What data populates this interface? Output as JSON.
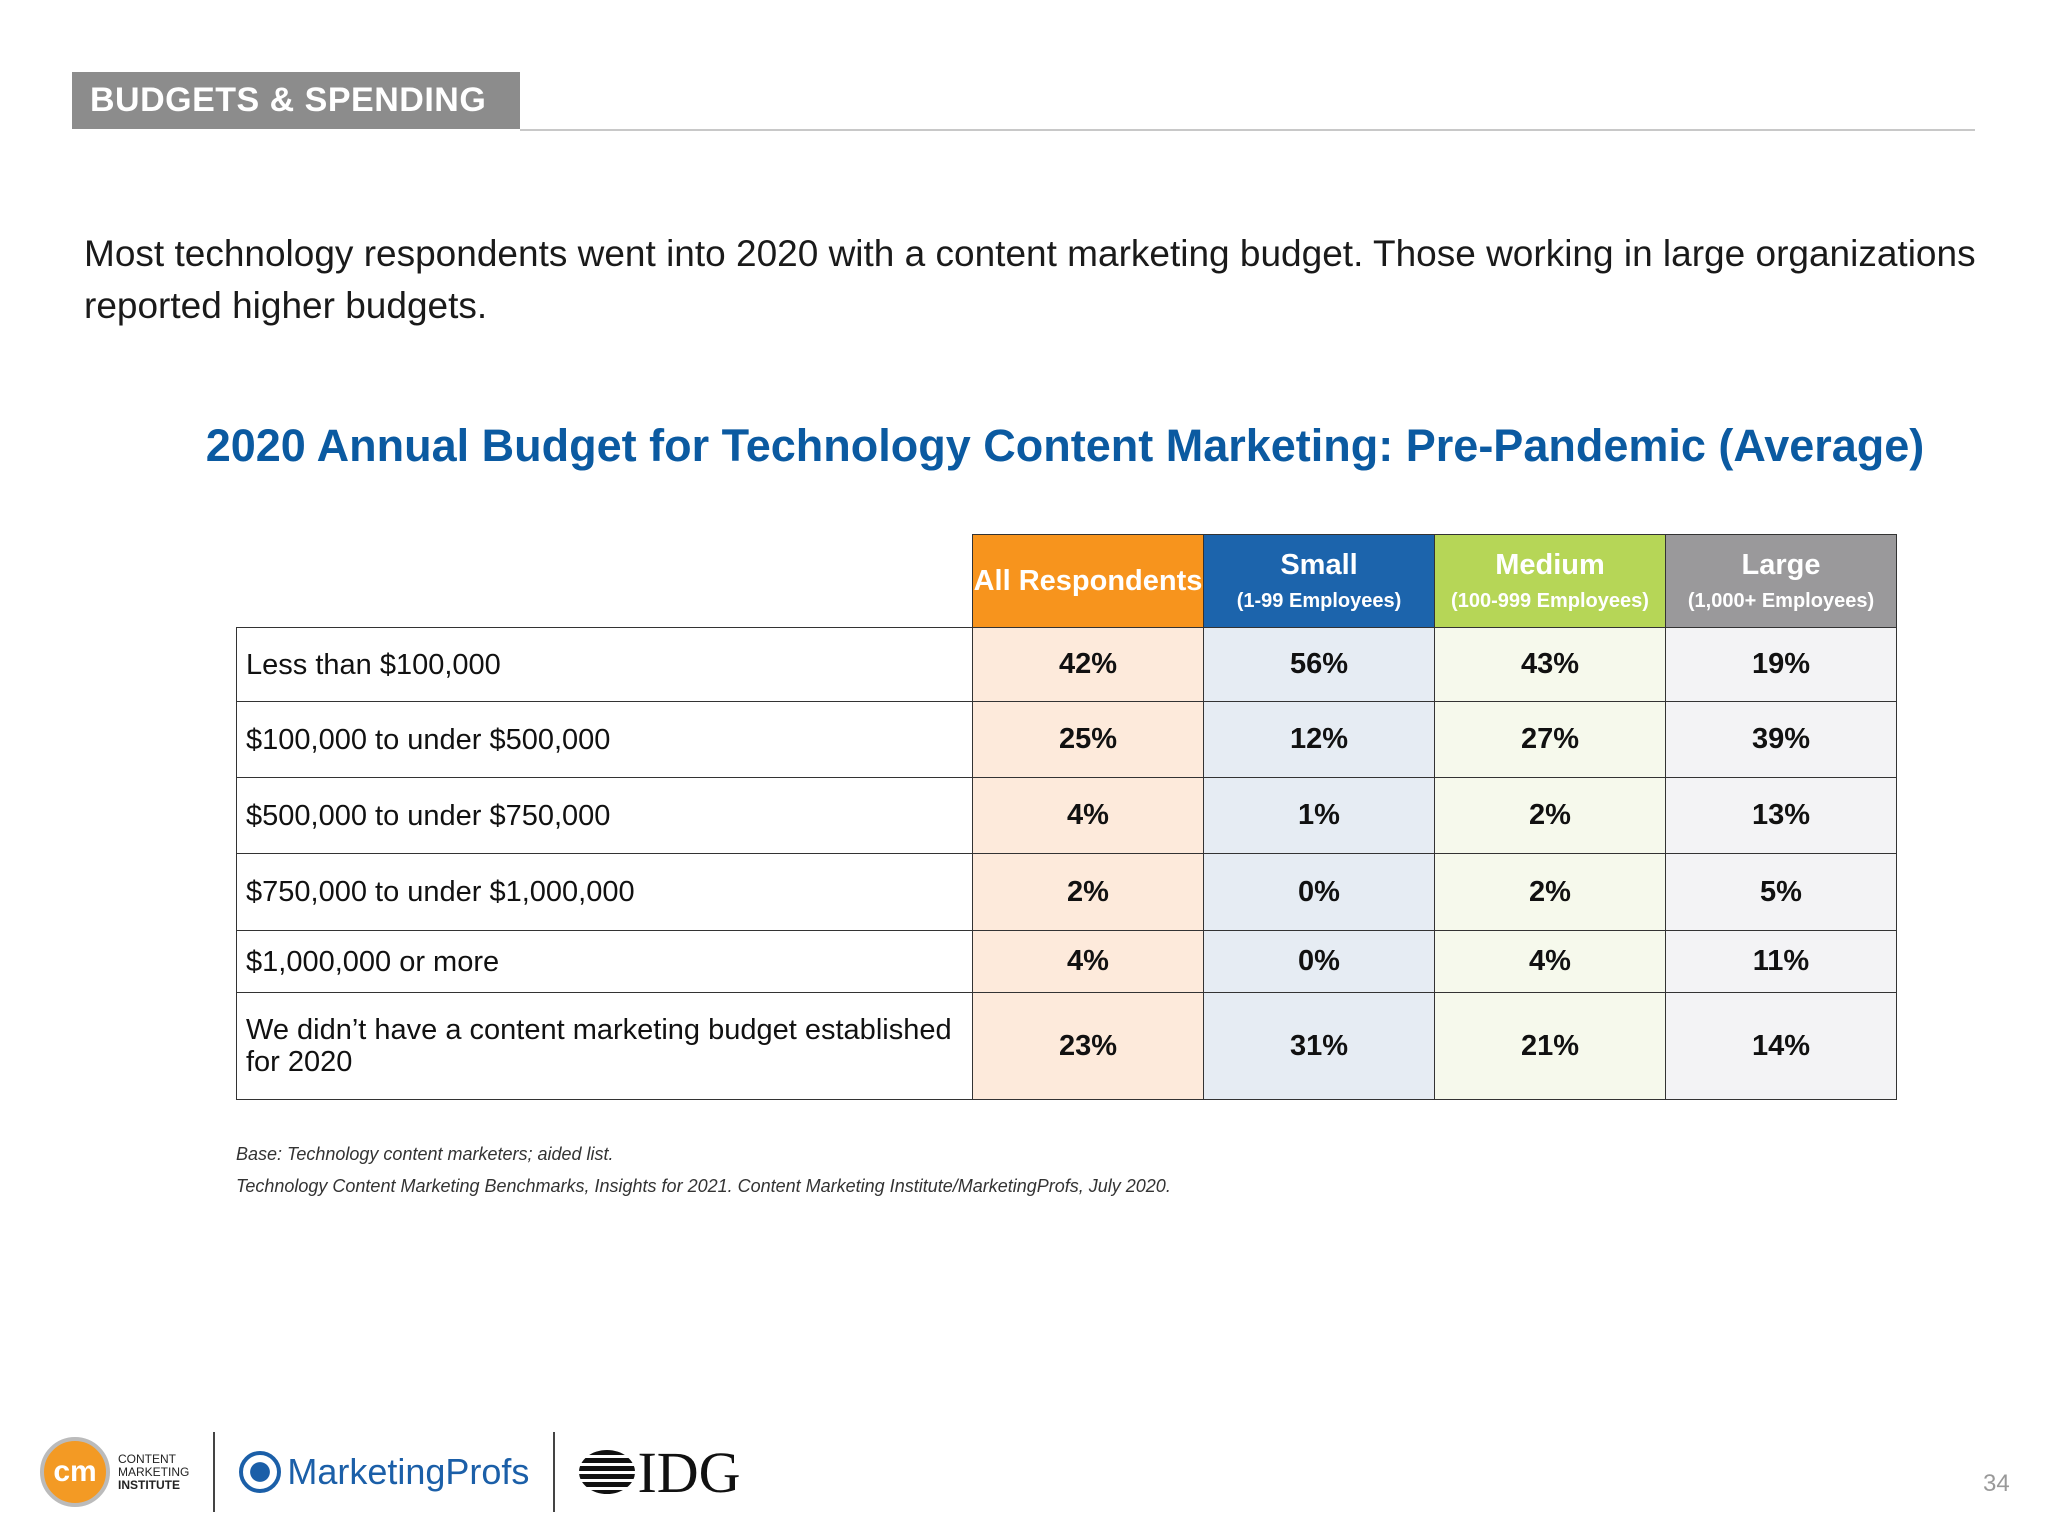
{
  "section": "BUDGETS & SPENDING",
  "intro": "Most technology respondents went into 2020 with a content marketing budget. Those working in large organizations reported higher budgets.",
  "title": "2020 Annual Budget for Technology Content Marketing: Pre-Pandemic (Average)",
  "columns": [
    {
      "label": "All Respondents",
      "sub": "",
      "color": "#f7941d"
    },
    {
      "label": "Small",
      "sub": "(1-99 Employees)",
      "color": "#1c64ac"
    },
    {
      "label": "Medium",
      "sub": "(100-999 Employees)",
      "color": "#b6d657"
    },
    {
      "label": "Large",
      "sub": "(1,000+ Employees)",
      "color": "#9a999b"
    }
  ],
  "rows": [
    {
      "label": "Less than $100,000",
      "values": [
        "42%",
        "56%",
        "43%",
        "19%"
      ]
    },
    {
      "label": "$100,000 to under $500,000",
      "values": [
        "25%",
        "12%",
        "27%",
        "39%"
      ]
    },
    {
      "label": "$500,000 to under $750,000",
      "values": [
        "4%",
        "1%",
        "2%",
        "13%"
      ]
    },
    {
      "label": "$750,000 to under $1,000,000",
      "values": [
        "2%",
        "0%",
        "2%",
        "5%"
      ]
    },
    {
      "label": "$1,000,000 or more",
      "values": [
        "4%",
        "0%",
        "4%",
        "11%"
      ]
    },
    {
      "label": "We didn’t have a content marketing budget established for 2020",
      "values": [
        "23%",
        "31%",
        "21%",
        "14%"
      ]
    }
  ],
  "notes": [
    "Base: Technology content marketers; aided list.",
    "Technology Content Marketing Benchmarks, Insights for 2021. Content Marketing Institute/MarketingProfs, July 2020."
  ],
  "footer": {
    "cmi_mark": "cm",
    "cmi_text": [
      "CONTENT",
      "MARKETING",
      "INSTITUTE"
    ],
    "marketingprofs": "MarketingProfs",
    "idg": "IDG"
  },
  "page_number": "34"
}
